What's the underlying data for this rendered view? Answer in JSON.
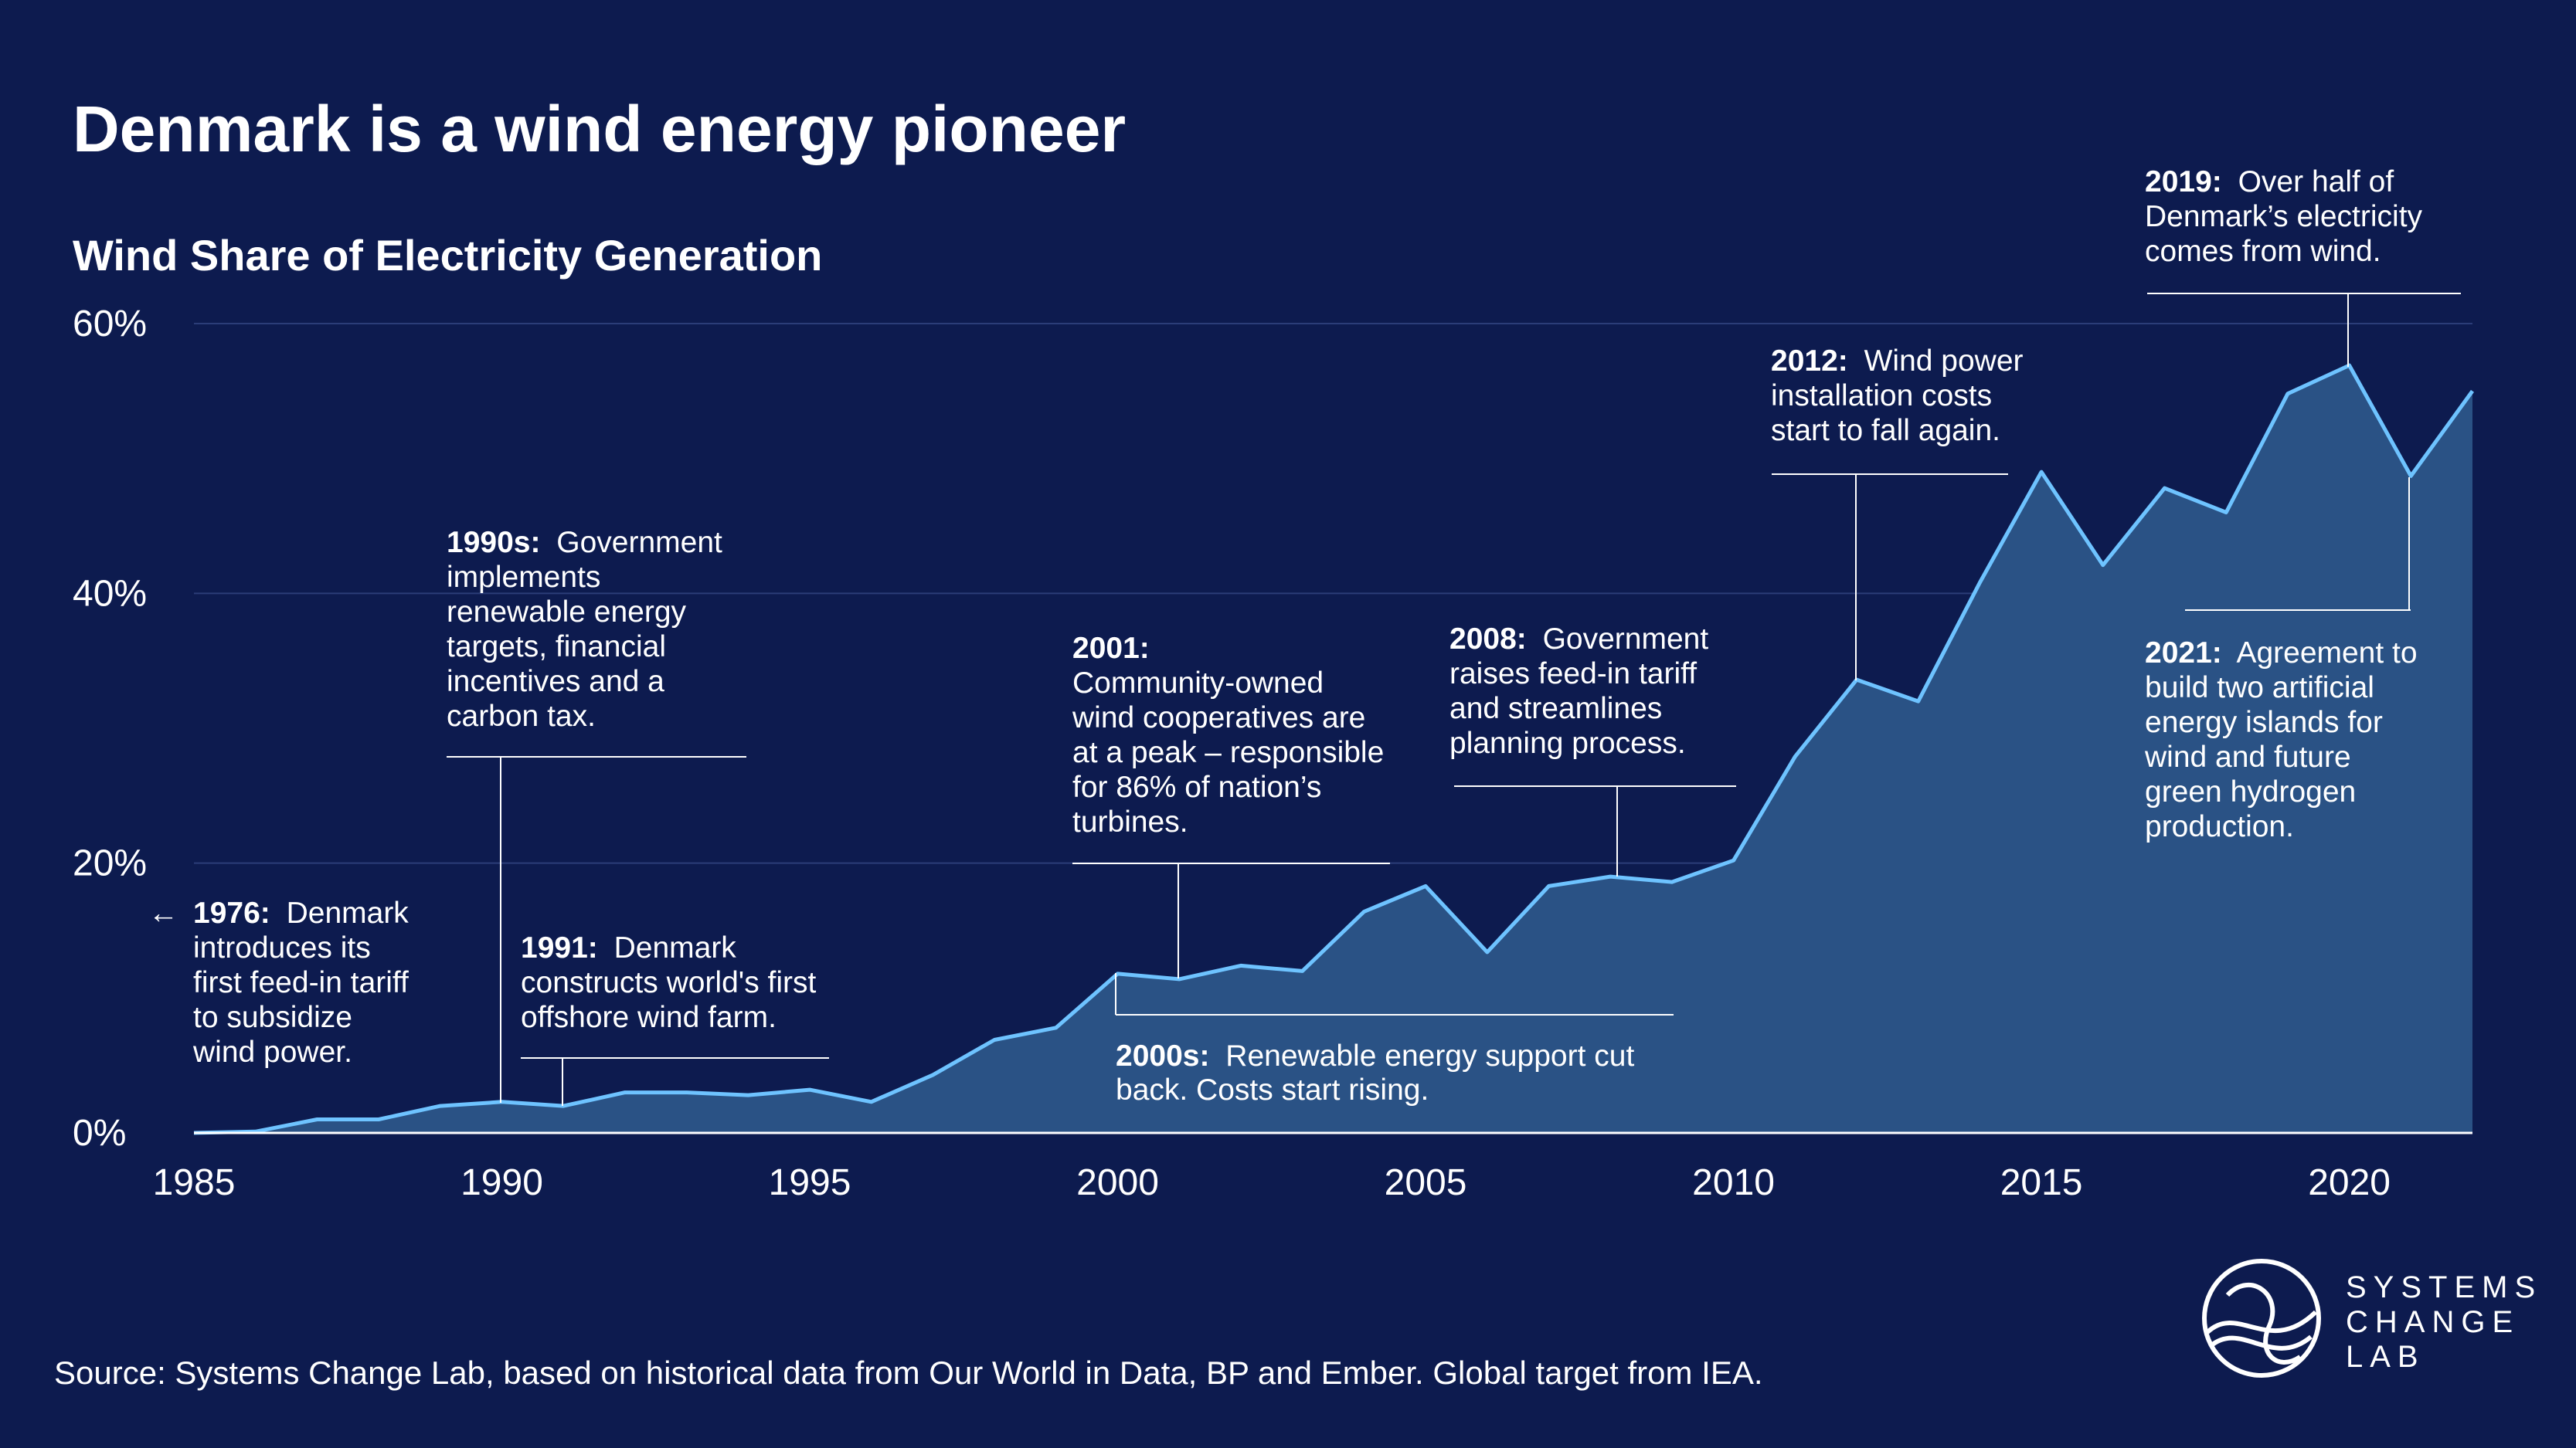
{
  "colors": {
    "background": "#0d1b4f",
    "line": "#6ec3ff",
    "area": "#2a5285",
    "grid": "#2b3d78",
    "text": "#ffffff"
  },
  "chart_data": {
    "type": "area",
    "title": "Denmark is a wind energy pioneer",
    "subtitle": "Wind Share of Electricity Generation",
    "xlabel": "",
    "ylabel": "",
    "xlim": [
      1985,
      2022
    ],
    "ylim": [
      0,
      60
    ],
    "grid": true,
    "x_ticks": [
      "1985",
      "1990",
      "1995",
      "2000",
      "2005",
      "2010",
      "2015",
      "2020"
    ],
    "y_ticks": [
      "0%",
      "20%",
      "40%",
      "60%"
    ],
    "series": [
      {
        "name": "Wind share of electricity generation (%)",
        "x": [
          1985,
          1986,
          1987,
          1988,
          1989,
          1990,
          1991,
          1992,
          1993,
          1994,
          1995,
          1996,
          1997,
          1998,
          1999,
          2000,
          2001,
          2002,
          2003,
          2004,
          2005,
          2006,
          2007,
          2008,
          2009,
          2010,
          2011,
          2012,
          2013,
          2014,
          2015,
          2016,
          2017,
          2018,
          2019,
          2020,
          2021,
          2022
        ],
        "values": [
          0.0,
          0.1,
          1.0,
          1.0,
          2.0,
          2.3,
          2.0,
          3.0,
          3.0,
          2.8,
          3.2,
          2.3,
          4.3,
          6.9,
          7.8,
          11.8,
          11.4,
          12.4,
          12.0,
          16.4,
          18.3,
          13.4,
          18.3,
          19.0,
          18.6,
          20.2,
          27.9,
          33.6,
          32.0,
          40.8,
          49.0,
          42.1,
          47.8,
          46.0,
          54.8,
          56.9,
          48.7,
          55.0
        ]
      }
    ],
    "annotations": [
      {
        "year": "1976:",
        "text": [
          "Denmark",
          "introduces its",
          "first feed-in tariff",
          "to subsidize",
          "wind power."
        ],
        "arrow": "←"
      },
      {
        "year": "1990s:",
        "text": [
          "Government",
          "implements",
          "renewable energy",
          "targets, financial",
          "incentives and a",
          "carbon tax."
        ]
      },
      {
        "year": "1991:",
        "text": [
          "Denmark",
          "constructs world's first",
          "offshore wind farm."
        ]
      },
      {
        "year": "2001:",
        "text": [
          "Community-owned",
          "wind cooperatives are",
          "at a peak – responsible",
          "for 86% of nation’s",
          "turbines."
        ]
      },
      {
        "year": "2000s:",
        "text": [
          "Renewable energy support cut",
          "back. Costs start rising."
        ]
      },
      {
        "year": "2008:",
        "text": [
          "Government",
          "raises feed-in tariff",
          "and streamlines",
          "planning process."
        ]
      },
      {
        "year": "2012:",
        "text": [
          "Wind power",
          "installation costs",
          "start to fall again."
        ]
      },
      {
        "year": "2019:",
        "text": [
          "Over half of",
          "Denmark’s electricity",
          "comes from wind."
        ]
      },
      {
        "year": "2021:",
        "text": [
          "Agreement to",
          "build two artificial",
          "energy islands for",
          "wind and future",
          "green hydrogen",
          "production."
        ]
      }
    ]
  },
  "footer": {
    "source": "Source: Systems Change Lab, based on historical data from Our World in Data, BP and Ember. Global target from IEA."
  },
  "brand": {
    "lines": [
      "SYSTEMS",
      "CHANGE",
      "LAB"
    ],
    "icon": "systems-change-lab-logo-icon"
  }
}
